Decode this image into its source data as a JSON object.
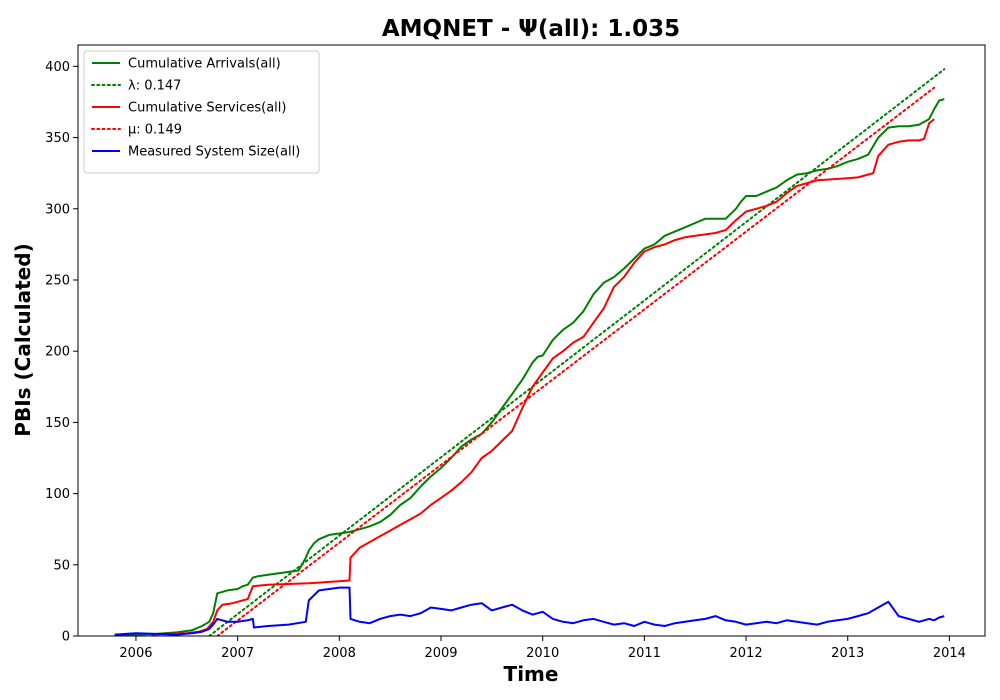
{
  "chart_data": {
    "type": "line",
    "title": "AMQNET -  Ψ(all): 1.035",
    "xlabel": "Time",
    "ylabel": "PBIs (Calculated)",
    "xlim": [
      2005.43,
      2014.35
    ],
    "ylim": [
      0,
      415
    ],
    "x_ticks": [
      2006,
      2007,
      2008,
      2009,
      2010,
      2011,
      2012,
      2013,
      2014
    ],
    "y_ticks": [
      0,
      50,
      100,
      150,
      200,
      250,
      300,
      350,
      400
    ],
    "grid": false,
    "legend_position": "top-left",
    "series": [
      {
        "name": "Cumulative Arrivals(all)",
        "color": "#008000",
        "style": "solid",
        "x": [
          2005.79,
          2006.0,
          2006.2,
          2006.4,
          2006.55,
          2006.65,
          2006.72,
          2006.76,
          2006.8,
          2006.9,
          2007.0,
          2007.05,
          2007.1,
          2007.15,
          2007.2,
          2007.3,
          2007.5,
          2007.6,
          2007.67,
          2007.7,
          2007.75,
          2007.8,
          2007.9,
          2008.0,
          2008.1,
          2008.2,
          2008.3,
          2008.4,
          2008.5,
          2008.6,
          2008.7,
          2008.8,
          2008.9,
          2009.0,
          2009.1,
          2009.2,
          2009.3,
          2009.4,
          2009.5,
          2009.6,
          2009.7,
          2009.8,
          2009.9,
          2009.95,
          2010.0,
          2010.1,
          2010.2,
          2010.3,
          2010.4,
          2010.5,
          2010.6,
          2010.7,
          2010.8,
          2010.9,
          2011.0,
          2011.1,
          2011.2,
          2011.3,
          2011.4,
          2011.5,
          2011.6,
          2011.7,
          2011.8,
          2011.9,
          2011.95,
          2012.0,
          2012.1,
          2012.2,
          2012.3,
          2012.4,
          2012.5,
          2012.6,
          2012.7,
          2012.8,
          2012.9,
          2013.0,
          2013.1,
          2013.2,
          2013.3,
          2013.4,
          2013.5,
          2013.6,
          2013.7,
          2013.8,
          2013.85,
          2013.9,
          2013.95
        ],
        "y": [
          0.5,
          1.0,
          1.5,
          2.5,
          4.0,
          7.0,
          10.0,
          16.0,
          30.0,
          32.0,
          33.0,
          35.0,
          36.0,
          41.0,
          42.0,
          43.0,
          45.0,
          46.0,
          55.0,
          60.0,
          65.0,
          68.0,
          71.0,
          72.0,
          73.0,
          75.0,
          77.0,
          80.0,
          85.0,
          92.0,
          97.0,
          105.0,
          112.0,
          118.0,
          125.0,
          133.0,
          138.0,
          142.0,
          150.0,
          160.0,
          170.0,
          180.0,
          192.0,
          196.0,
          197.0,
          208.0,
          215.0,
          220.0,
          228.0,
          240.0,
          248.0,
          252.0,
          258.0,
          265.0,
          272.0,
          275.0,
          281.0,
          284.0,
          287.0,
          290.0,
          293.0,
          293.0,
          293.0,
          300.0,
          305.0,
          309.0,
          309.0,
          312.0,
          315.0,
          320.0,
          324.0,
          325.0,
          327.0,
          328.0,
          330.0,
          333.0,
          335.0,
          338.0,
          350.0,
          357.0,
          358.0,
          358.0,
          359.0,
          363.0,
          370.0,
          376.0,
          377.0
        ]
      },
      {
        "name": "λ: 0.147",
        "color": "#008000",
        "style": "dotted",
        "x": [
          2006.72,
          2013.95
        ],
        "y": [
          0,
          398
        ]
      },
      {
        "name": "Cumulative Services(all)",
        "color": "#ff0000",
        "style": "solid",
        "x": [
          2006.15,
          2006.3,
          2006.5,
          2006.62,
          2006.7,
          2006.76,
          2006.8,
          2006.85,
          2006.95,
          2007.0,
          2007.1,
          2007.15,
          2007.3,
          2007.5,
          2007.7,
          2007.8,
          2007.9,
          2008.0,
          2008.1,
          2008.11,
          2008.2,
          2008.3,
          2008.4,
          2008.5,
          2008.6,
          2008.7,
          2008.8,
          2008.9,
          2009.0,
          2009.1,
          2009.2,
          2009.3,
          2009.4,
          2009.5,
          2009.6,
          2009.7,
          2009.8,
          2009.9,
          2010.0,
          2010.1,
          2010.2,
          2010.3,
          2010.4,
          2010.5,
          2010.6,
          2010.7,
          2010.8,
          2010.9,
          2011.0,
          2011.1,
          2011.2,
          2011.3,
          2011.4,
          2011.5,
          2011.6,
          2011.7,
          2011.8,
          2011.9,
          2012.0,
          2012.1,
          2012.2,
          2012.3,
          2012.4,
          2012.5,
          2012.6,
          2012.7,
          2012.8,
          2012.9,
          2013.0,
          2013.1,
          2013.2,
          2013.25,
          2013.3,
          2013.4,
          2013.5,
          2013.6,
          2013.7,
          2013.75,
          2013.8,
          2013.85
        ],
        "y": [
          1.0,
          1.5,
          2.0,
          3.0,
          5.0,
          10.0,
          18.0,
          22.0,
          23.0,
          24.0,
          26.0,
          35.0,
          36.0,
          36.5,
          37.0,
          37.5,
          38.0,
          38.5,
          39.0,
          55.0,
          62.0,
          66.0,
          70.0,
          74.0,
          78.0,
          82.0,
          86.0,
          92.0,
          97.0,
          102.0,
          108.0,
          115.0,
          125.0,
          130.0,
          137.0,
          144.0,
          160.0,
          175.0,
          185.0,
          195.0,
          200.0,
          206.0,
          210.0,
          220.0,
          230.0,
          245.0,
          252.0,
          262.0,
          270.0,
          273.0,
          275.0,
          278.0,
          280.0,
          281.0,
          282.0,
          283.0,
          285.0,
          292.0,
          298.0,
          300.0,
          302.0,
          305.0,
          311.0,
          316.0,
          318.0,
          320.0,
          320.5,
          321.0,
          321.5,
          322.0,
          324.0,
          325.0,
          337.0,
          345.0,
          347.0,
          348.0,
          348.0,
          349.0,
          360.0,
          363.0
        ]
      },
      {
        "name": "μ: 0.149",
        "color": "#ff0000",
        "style": "dotted",
        "x": [
          2006.8,
          2013.85
        ],
        "y": [
          0,
          385
        ]
      },
      {
        "name": "Measured System Size(all)",
        "color": "#0000ff",
        "style": "solid",
        "x": [
          2005.79,
          2006.0,
          2006.2,
          2006.4,
          2006.55,
          2006.65,
          2006.72,
          2006.76,
          2006.8,
          2006.9,
          2007.0,
          2007.1,
          2007.15,
          2007.16,
          2007.3,
          2007.5,
          2007.67,
          2007.7,
          2007.8,
          2007.9,
          2008.0,
          2008.1,
          2008.11,
          2008.2,
          2008.3,
          2008.4,
          2008.5,
          2008.6,
          2008.7,
          2008.8,
          2008.9,
          2009.0,
          2009.1,
          2009.2,
          2009.3,
          2009.4,
          2009.5,
          2009.6,
          2009.7,
          2009.8,
          2009.9,
          2010.0,
          2010.1,
          2010.2,
          2010.3,
          2010.4,
          2010.5,
          2010.6,
          2010.7,
          2010.8,
          2010.9,
          2011.0,
          2011.1,
          2011.2,
          2011.3,
          2011.4,
          2011.5,
          2011.6,
          2011.7,
          2011.8,
          2011.9,
          2012.0,
          2012.1,
          2012.2,
          2012.3,
          2012.4,
          2012.5,
          2012.6,
          2012.7,
          2012.8,
          2012.9,
          2013.0,
          2013.1,
          2013.2,
          2013.3,
          2013.4,
          2013.5,
          2013.6,
          2013.7,
          2013.8,
          2013.85,
          2013.9,
          2013.95
        ],
        "y": [
          1.0,
          2.0,
          1.5,
          1.0,
          2.0,
          3.0,
          5.0,
          8.0,
          12.0,
          10.0,
          10.0,
          11.0,
          12.0,
          6.0,
          7.0,
          8.0,
          10.0,
          25.0,
          32.0,
          33.0,
          34.0,
          34.0,
          12.0,
          10.0,
          9.0,
          12.0,
          14.0,
          15.0,
          14.0,
          16.0,
          20.0,
          19.0,
          18.0,
          20.0,
          22.0,
          23.0,
          18.0,
          20.0,
          22.0,
          18.0,
          15.0,
          17.0,
          12.0,
          10.0,
          9.0,
          11.0,
          12.0,
          10.0,
          8.0,
          9.0,
          7.0,
          10.0,
          8.0,
          7.0,
          9.0,
          10.0,
          11.0,
          12.0,
          14.0,
          11.0,
          10.0,
          8.0,
          9.0,
          10.0,
          9.0,
          11.0,
          10.0,
          9.0,
          8.0,
          10.0,
          11.0,
          12.0,
          14.0,
          16.0,
          20.0,
          24.0,
          14.0,
          12.0,
          10.0,
          12.0,
          11.0,
          13.0,
          14.0
        ]
      }
    ]
  }
}
